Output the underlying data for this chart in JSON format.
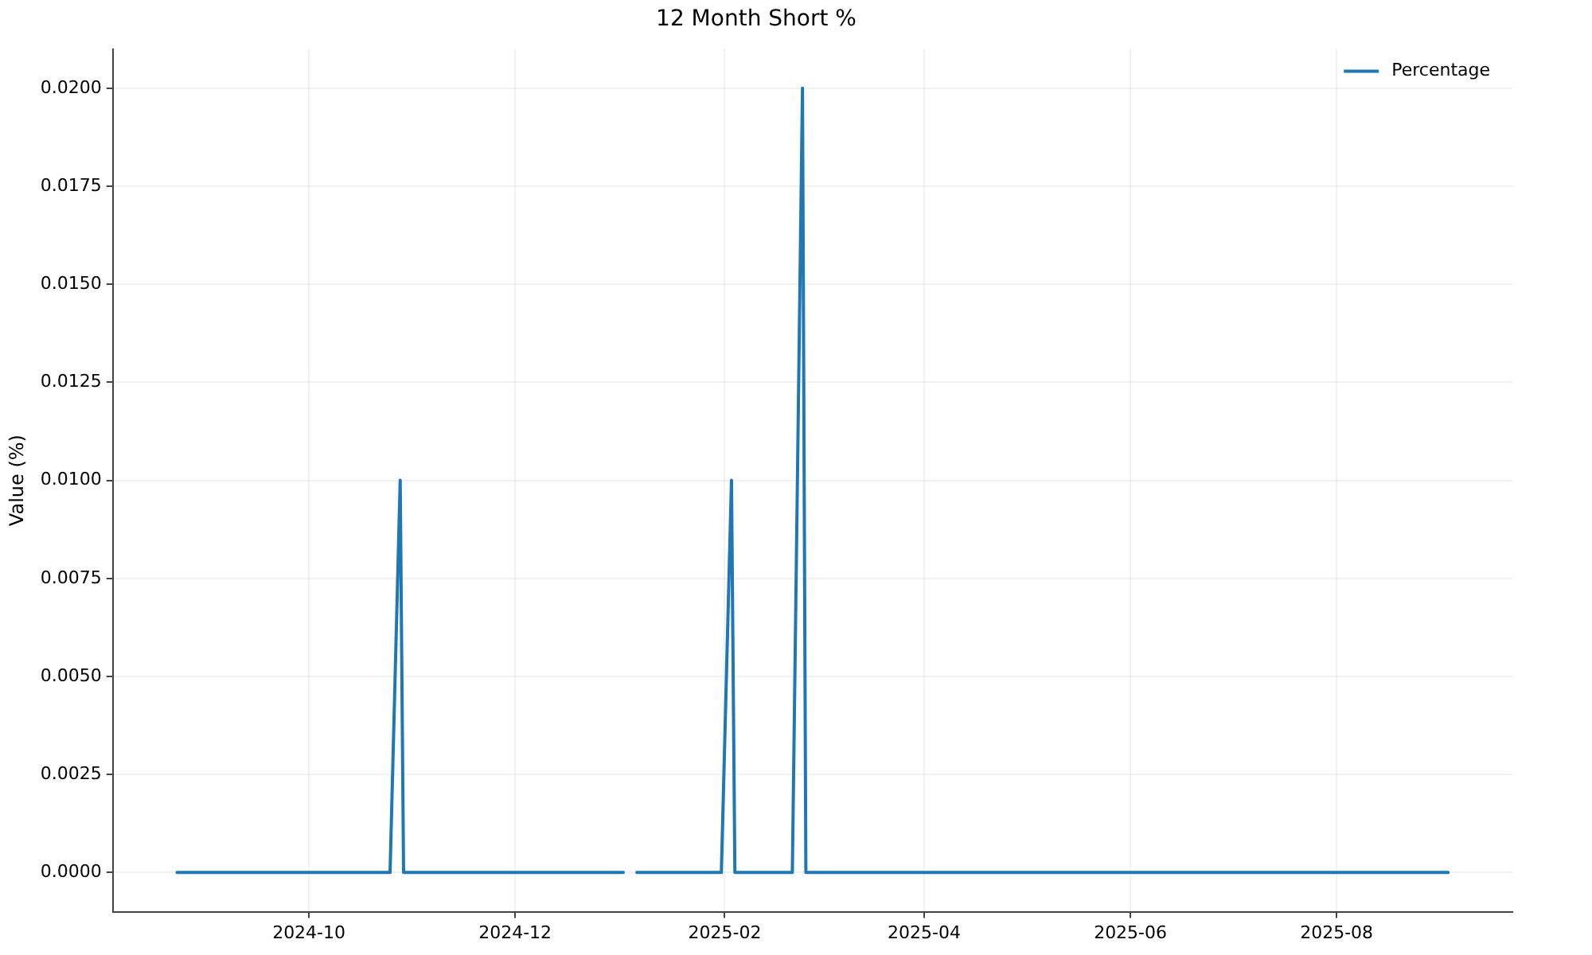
{
  "chart_data": {
    "type": "line",
    "title": "12 Month Short %",
    "ylabel": "Value (%)",
    "xlim": [
      "2024-08-04",
      "2025-09-22"
    ],
    "ylim": [
      -0.001,
      0.021
    ],
    "xticks": [
      {
        "value": "2024-10-01",
        "label": "2024-10"
      },
      {
        "value": "2024-12-01",
        "label": "2024-12"
      },
      {
        "value": "2025-02-01",
        "label": "2025-02"
      },
      {
        "value": "2025-04-01",
        "label": "2025-04"
      },
      {
        "value": "2025-06-01",
        "label": "2025-06"
      },
      {
        "value": "2025-08-01",
        "label": "2025-08"
      }
    ],
    "yticks": [
      {
        "value": 0,
        "label": "0.0000"
      },
      {
        "value": 0.0025,
        "label": "0.0025"
      },
      {
        "value": 0.005,
        "label": "0.0050"
      },
      {
        "value": 0.0075,
        "label": "0.0075"
      },
      {
        "value": 0.01,
        "label": "0.0100"
      },
      {
        "value": 0.0125,
        "label": "0.0125"
      },
      {
        "value": 0.015,
        "label": "0.0150"
      },
      {
        "value": 0.0175,
        "label": "0.0175"
      },
      {
        "value": 0.02,
        "label": "0.0200"
      }
    ],
    "grid": true,
    "legend": "top right",
    "marker": "none",
    "line_style": "solid",
    "series": [
      {
        "name": "Percentage",
        "color": "#1f77b4",
        "x": [
          "2024-08-23",
          "2024-10-25",
          "2024-10-28",
          "2024-10-29",
          "2025-01-02",
          "2025-01-04",
          "2025-01-06",
          "2025-01-31",
          "2025-02-03",
          "2025-02-04",
          "2025-02-21",
          "2025-02-24",
          "2025-02-25",
          "2025-09-03"
        ],
        "values": [
          0,
          0,
          0.01,
          0,
          0,
          null,
          0,
          0,
          0.01,
          0,
          0,
          0.02,
          0,
          0
        ]
      }
    ]
  }
}
